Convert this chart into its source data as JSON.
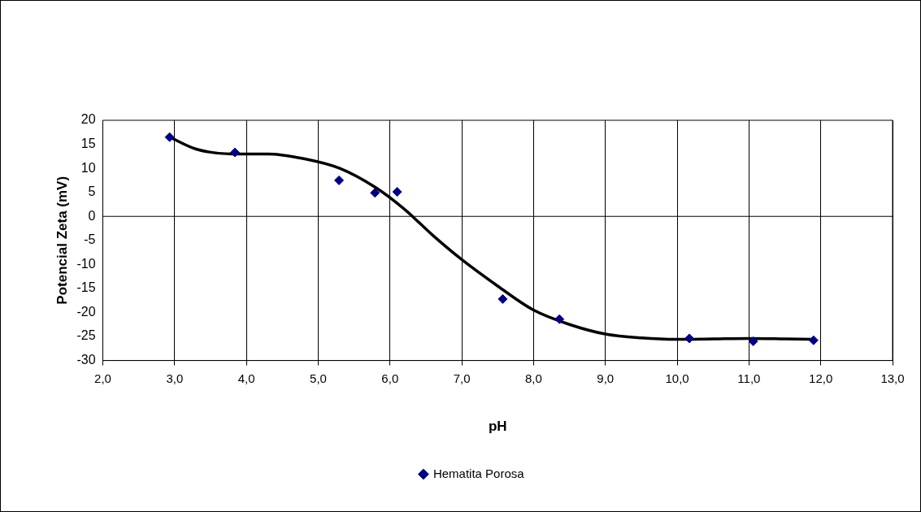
{
  "chart_data": {
    "type": "scatter",
    "xlabel": "pH",
    "ylabel": "Potencial Zeta (mV)",
    "series": [
      {
        "name": "Hematita Porosa",
        "color": "#000080",
        "marker": "diamond",
        "x": [
          2.93,
          3.84,
          5.29,
          5.79,
          6.1,
          7.57,
          8.36,
          10.17,
          11.06,
          11.9
        ],
        "values": [
          16.5,
          13.3,
          7.5,
          4.9,
          5.1,
          -17.2,
          -21.4,
          -25.4,
          -26,
          -25.8
        ]
      },
      {
        "color": "#000000",
        "type": "line",
        "marker": "none",
        "line_style": "solid",
        "x": [
          2.93,
          3.3,
          3.8,
          4.3,
          4.8,
          5.3,
          5.8,
          6.2,
          6.6,
          7.0,
          7.5,
          8.0,
          8.5,
          9.0,
          9.5,
          10.0,
          10.5,
          11.0,
          11.5,
          11.9
        ],
        "values": [
          16.5,
          14,
          13,
          13,
          12,
          10,
          6,
          1.5,
          -4,
          -9,
          -14.5,
          -19.5,
          -22.5,
          -24.5,
          -25.3,
          -25.6,
          -25.5,
          -25.4,
          -25.5,
          -25.6
        ]
      }
    ],
    "xlim": [
      2,
      13
    ],
    "xticks": [
      {
        "value": 2,
        "label": "2,0"
      },
      {
        "value": 3,
        "label": "3,0"
      },
      {
        "value": 4,
        "label": "4,0"
      },
      {
        "value": 5,
        "label": "5,0"
      },
      {
        "value": 6,
        "label": "6,0"
      },
      {
        "value": 7,
        "label": "7,0"
      },
      {
        "value": 8,
        "label": "8,0"
      },
      {
        "value": 9,
        "label": "9,0"
      },
      {
        "value": 10,
        "label": "10,0"
      },
      {
        "value": 11,
        "label": "11,0"
      },
      {
        "value": 12,
        "label": "12,0"
      },
      {
        "value": 13,
        "label": "13,0"
      }
    ],
    "ylim": [
      -30,
      20
    ],
    "yticks": [
      -30,
      -25,
      -20,
      -15,
      -10,
      -5,
      0,
      5,
      10,
      15,
      20
    ],
    "ref_lines": [
      {
        "axis": "y",
        "value": 0,
        "color": "#000000"
      }
    ],
    "grid": "x",
    "legend": "bottom"
  }
}
